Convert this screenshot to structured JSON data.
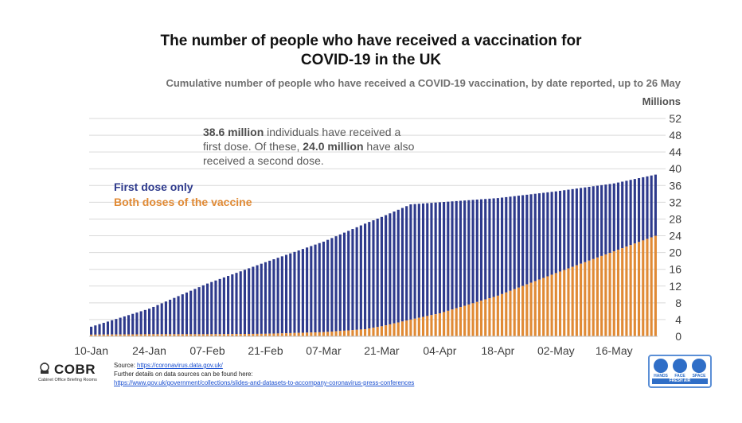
{
  "header": {
    "title_line1": "The number of people who have received a vaccination for",
    "title_line2": "COVID-19 in the UK",
    "subtitle": "Cumulative number of people who have received a COVID-19 vaccination, by date reported, up to 26 May",
    "y_unit": "Millions"
  },
  "annotation": {
    "first_value": "38.6 million",
    "text1": " individuals have received a first dose. Of these, ",
    "second_value": "24.0 million",
    "text2": " have also received a second dose."
  },
  "legend": {
    "first": "First dose only",
    "both": "Both doses of the vaccine"
  },
  "footer": {
    "source_label": "Source: ",
    "source_url": "https://coronavirus.data.gov.uk/",
    "further": "Further details on data sources can be found here:",
    "further_url": "https://www.gov.uk/government/collections/slides-and-datasets-to-accompany-coronavirus-press-conferences",
    "logo_text": "COBR",
    "logo_sub": "Cabinet Office Briefing Rooms",
    "hfs_hands": "HANDS",
    "hfs_face": "FACE",
    "hfs_space": "SPACE",
    "hfs_bar": "FRESH AIR"
  },
  "colors": {
    "first": "#2e3a8c",
    "both": "#e08a35",
    "grid": "#d9d9d9"
  },
  "chart_data": {
    "type": "bar",
    "stacked": true,
    "title": "The number of people who have received a vaccination for COVID-19 in the UK",
    "subtitle": "Cumulative number of people who have received a COVID-19 vaccination, by date reported, up to 26 May",
    "ylabel": "Millions",
    "ylim": [
      0,
      52
    ],
    "yticks": [
      0,
      4,
      8,
      12,
      16,
      20,
      24,
      28,
      32,
      36,
      40,
      44,
      48,
      52
    ],
    "y_axis_side": "right",
    "x_tick_labels": [
      "10-Jan",
      "24-Jan",
      "07-Feb",
      "21-Feb",
      "07-Mar",
      "21-Mar",
      "04-Apr",
      "18-Apr",
      "02-May",
      "16-May"
    ],
    "x_tick_index": [
      0,
      14,
      28,
      42,
      56,
      70,
      84,
      98,
      112,
      126
    ],
    "start_date": "10-Jan",
    "end_date": "26-May",
    "series": [
      {
        "name": "First dose (cumulative)",
        "anchors": [
          [
            0,
            2.3
          ],
          [
            14,
            6.6
          ],
          [
            28,
            12.6
          ],
          [
            42,
            17.7
          ],
          [
            56,
            22.6
          ],
          [
            66,
            26.9
          ],
          [
            70,
            28.5
          ],
          [
            77,
            31.5
          ],
          [
            84,
            32.0
          ],
          [
            98,
            33.0
          ],
          [
            112,
            34.6
          ],
          [
            126,
            36.5
          ],
          [
            136,
            38.6
          ]
        ]
      },
      {
        "name": "Both doses of the vaccine (cumulative)",
        "anchors": [
          [
            0,
            0.4
          ],
          [
            14,
            0.5
          ],
          [
            28,
            0.5
          ],
          [
            42,
            0.6
          ],
          [
            56,
            1.0
          ],
          [
            66,
            1.7
          ],
          [
            70,
            2.4
          ],
          [
            77,
            4.0
          ],
          [
            84,
            5.5
          ],
          [
            98,
            9.7
          ],
          [
            112,
            15.1
          ],
          [
            126,
            20.3
          ],
          [
            136,
            24.0
          ]
        ]
      }
    ],
    "latest_first_dose": 38.6,
    "latest_second_dose": 24.0
  }
}
